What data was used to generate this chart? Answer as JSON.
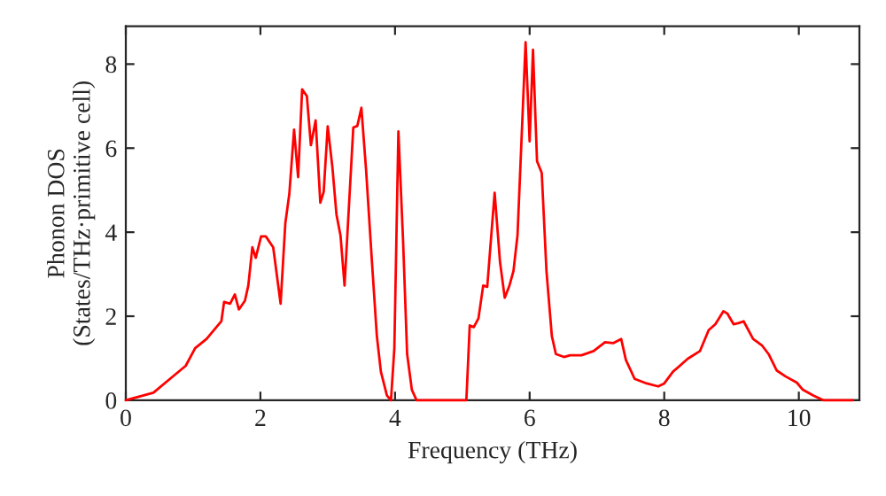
{
  "chart_data": {
    "type": "line",
    "xlabel": "Frequency (THz)",
    "ylabel": "Phonon DOS\n(States/THz·primitive cell)",
    "xlim": [
      0,
      10.9
    ],
    "ylim": [
      0,
      8.9
    ],
    "xticks": [
      0,
      2,
      4,
      6,
      8,
      10
    ],
    "yticks": [
      0,
      2,
      4,
      6,
      8
    ],
    "grid": false,
    "marker": "none",
    "line_style": "solid",
    "series": [
      {
        "color": "#ff0000",
        "x": [
          0,
          0.41,
          0.68,
          0.89,
          1.03,
          1.2,
          1.42,
          1.46,
          1.55,
          1.62,
          1.68,
          1.77,
          1.82,
          1.88,
          1.93,
          2.01,
          2.08,
          2.19,
          2.3,
          2.37,
          2.43,
          2.5,
          2.56,
          2.62,
          2.69,
          2.75,
          2.82,
          2.89,
          2.94,
          3.0,
          3.07,
          3.13,
          3.19,
          3.25,
          3.38,
          3.44,
          3.5,
          3.57,
          3.66,
          3.73,
          3.79,
          3.88,
          3.94,
          3.99,
          4.05,
          4.12,
          4.18,
          4.25,
          4.32,
          5.06,
          5.11,
          5.17,
          5.24,
          5.31,
          5.37,
          5.48,
          5.56,
          5.63,
          5.7,
          5.76,
          5.82,
          5.94,
          6.0,
          6.05,
          6.11,
          6.18,
          6.25,
          6.33,
          6.39,
          6.51,
          6.6,
          6.77,
          6.95,
          7.12,
          7.24,
          7.36,
          7.43,
          7.56,
          7.74,
          7.91,
          8.0,
          8.13,
          8.35,
          8.53,
          8.66,
          8.76,
          8.88,
          8.94,
          9.03,
          9.11,
          9.18,
          9.32,
          9.45,
          9.55,
          9.67,
          9.8,
          9.97,
          10.06,
          10.22,
          10.37,
          10.8
        ],
        "values": [
          0,
          0.18,
          0.54,
          0.82,
          1.24,
          1.46,
          1.88,
          2.34,
          2.3,
          2.52,
          2.16,
          2.37,
          2.73,
          3.64,
          3.39,
          3.9,
          3.9,
          3.64,
          2.3,
          4.21,
          4.92,
          6.44,
          5.31,
          7.4,
          7.24,
          6.07,
          6.66,
          4.7,
          4.96,
          6.52,
          5.54,
          4.42,
          3.92,
          2.73,
          6.49,
          6.53,
          6.96,
          5.48,
          3.22,
          1.53,
          0.68,
          0.11,
          0,
          1.24,
          6.4,
          3.78,
          1.1,
          0.25,
          0,
          0,
          1.78,
          1.74,
          1.95,
          2.73,
          2.7,
          4.94,
          3.29,
          2.44,
          2.73,
          3.08,
          3.93,
          8.52,
          6.16,
          8.34,
          5.69,
          5.41,
          3.08,
          1.53,
          1.1,
          1.03,
          1.07,
          1.07,
          1.17,
          1.38,
          1.36,
          1.46,
          0.96,
          0.51,
          0.4,
          0.33,
          0.4,
          0.68,
          0.99,
          1.17,
          1.67,
          1.81,
          2.12,
          2.06,
          1.81,
          1.84,
          1.88,
          1.46,
          1.31,
          1.1,
          0.71,
          0.57,
          0.42,
          0.25,
          0.11,
          0,
          0
        ]
      }
    ]
  }
}
